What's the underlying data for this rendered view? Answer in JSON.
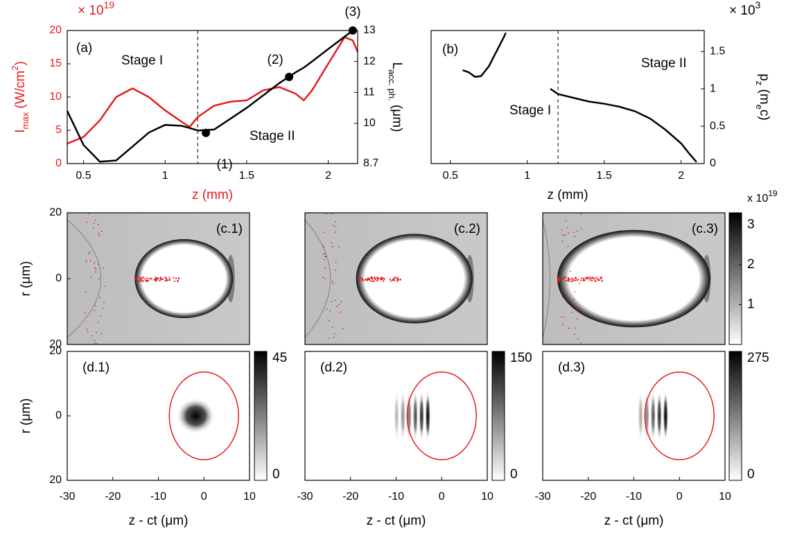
{
  "chart_data": [
    {
      "type": "line",
      "label": "(a)",
      "x": [
        0.4,
        0.5,
        0.6,
        0.7,
        0.8,
        0.9,
        1.0,
        1.1,
        1.15,
        1.2,
        1.3,
        1.4,
        1.5,
        1.6,
        1.7,
        1.8,
        1.85,
        1.9,
        2.0,
        2.1,
        2.15,
        2.18
      ],
      "series": [
        {
          "color": "#e8191c",
          "values": [
            3,
            4,
            6.5,
            10,
            11.3,
            10,
            8,
            6.3,
            5.5,
            7,
            8.7,
            9.3,
            9.5,
            11,
            11.5,
            10.5,
            9.5,
            11,
            15,
            19,
            18.5,
            16.8
          ]
        },
        {
          "color": "#000000",
          "axis": "y2",
          "values": [
            10.4,
            9.3,
            8.76,
            8.8,
            9.25,
            9.7,
            9.95,
            9.92,
            9.85,
            9.77,
            9.8,
            10.15,
            10.5,
            10.9,
            11.3,
            11.65,
            11.8,
            12.0,
            12.4,
            12.8,
            13,
            null
          ]
        }
      ],
      "points": {
        "axis": "y2",
        "x": [
          1.25,
          1.76,
          2.15
        ],
        "values": [
          9.69,
          11.5,
          13
        ],
        "labels": [
          "(1)",
          "(2)",
          "(3)"
        ]
      },
      "vline": 1.2,
      "annotations": [
        "Stage I",
        "Stage II"
      ],
      "xlabel": "z (mm)",
      "xlim": [
        0.4,
        2.18
      ],
      "xticks": [
        0.5,
        1,
        1.5,
        2
      ],
      "ylim": [
        0,
        20
      ],
      "yticks": [
        0,
        5,
        10,
        15,
        20
      ],
      "ylabel": {
        "main": "I",
        "sub": "max",
        "unit": " (W/cm",
        "sup": "2",
        "close": ")"
      },
      "yscale": {
        "base": "× 10",
        "exp": "19"
      },
      "y2lim": [
        8.7,
        13
      ],
      "y2ticks": [
        8.7,
        10,
        11,
        12,
        13
      ],
      "y2label": {
        "main": "L",
        "sub": "acc. ph.",
        "unit": " (μm)"
      },
      "axis_color": "#e8191c"
    },
    {
      "type": "line",
      "label": "(b)",
      "x": [
        0.58,
        0.62,
        0.66,
        0.7,
        0.75,
        0.8,
        0.85,
        0.86,
        1.0,
        1.15,
        1.2,
        1.3,
        1.4,
        1.5,
        1.6,
        1.7,
        1.8,
        1.9,
        2.0,
        2.05,
        2.1
      ],
      "series": [
        {
          "color": "#000000",
          "values": [
            1.25,
            1.22,
            1.16,
            1.17,
            1.3,
            1.5,
            1.7,
            1.75,
            null,
            1.0,
            0.93,
            0.88,
            0.83,
            0.8,
            0.76,
            0.7,
            0.6,
            0.45,
            0.27,
            0.14,
            0.02
          ]
        }
      ],
      "vline": 1.2,
      "annotations": [
        "Stage I",
        "Stage II"
      ],
      "xlabel": "z (mm)",
      "xlim": [
        0.375,
        2.15
      ],
      "xticks": [
        0.5,
        1,
        1.5,
        2
      ],
      "ylim": [
        0,
        1.78
      ],
      "yticks": [
        0,
        0.5,
        1,
        1.5
      ],
      "yaxis_side": "right",
      "ylabel": {
        "main": "p",
        "sub": "z",
        "unit": " (m",
        "sub2": "e",
        "close": "c)"
      },
      "yscale": {
        "base": "× 10",
        "exp": "3"
      }
    },
    {
      "type": "heatmap",
      "label": "(c.1)",
      "xlim": [
        -30,
        10
      ],
      "ylim": [
        -20,
        20
      ],
      "yticks": [
        {
          "value": -20,
          "label": "20"
        },
        0,
        20
      ],
      "ylabel": "r (μm)"
    },
    {
      "type": "heatmap",
      "label": "(c.2)",
      "xlim": [
        -30,
        10
      ],
      "ylim": [
        -20,
        20
      ]
    },
    {
      "type": "heatmap",
      "label": "(c.3)",
      "xlim": [
        -30,
        10
      ],
      "ylim": [
        -20,
        20
      ],
      "colorbar": {
        "lim": [
          0,
          3.3
        ],
        "ticks": [
          1,
          2,
          3
        ],
        "scale": {
          "base": "x 10",
          "exp": "19"
        }
      }
    },
    {
      "type": "heatmap",
      "label": "(d.1)",
      "xlim": [
        -30,
        10
      ],
      "ylim": [
        -20,
        20
      ],
      "yticks": [
        {
          "value": -20,
          "label": "20"
        },
        0,
        20
      ],
      "ylabel": "r (μm)",
      "xticks": [
        -30,
        -20,
        -10,
        0,
        10
      ],
      "xlabel": "z - ct (μm)",
      "colorbar": {
        "lim": [
          0,
          45
        ],
        "ticks": [
          0,
          45
        ]
      }
    },
    {
      "type": "heatmap",
      "label": "(d.2)",
      "xlim": [
        -30,
        10
      ],
      "ylim": [
        -20,
        20
      ],
      "xticks": [
        -30,
        -20,
        -10,
        0,
        10
      ],
      "xlabel": "z - ct (μm)",
      "colorbar": {
        "lim": [
          0,
          150
        ],
        "ticks": [
          0,
          150
        ]
      }
    },
    {
      "type": "heatmap",
      "label": "(d.3)",
      "xlim": [
        -30,
        10
      ],
      "ylim": [
        -20,
        20
      ],
      "xticks": [
        -30,
        -20,
        -10,
        0,
        10
      ],
      "xlabel": "z - ct (μm)",
      "colorbar": {
        "lim": [
          0,
          275
        ],
        "ticks": [
          0,
          275
        ]
      }
    }
  ]
}
